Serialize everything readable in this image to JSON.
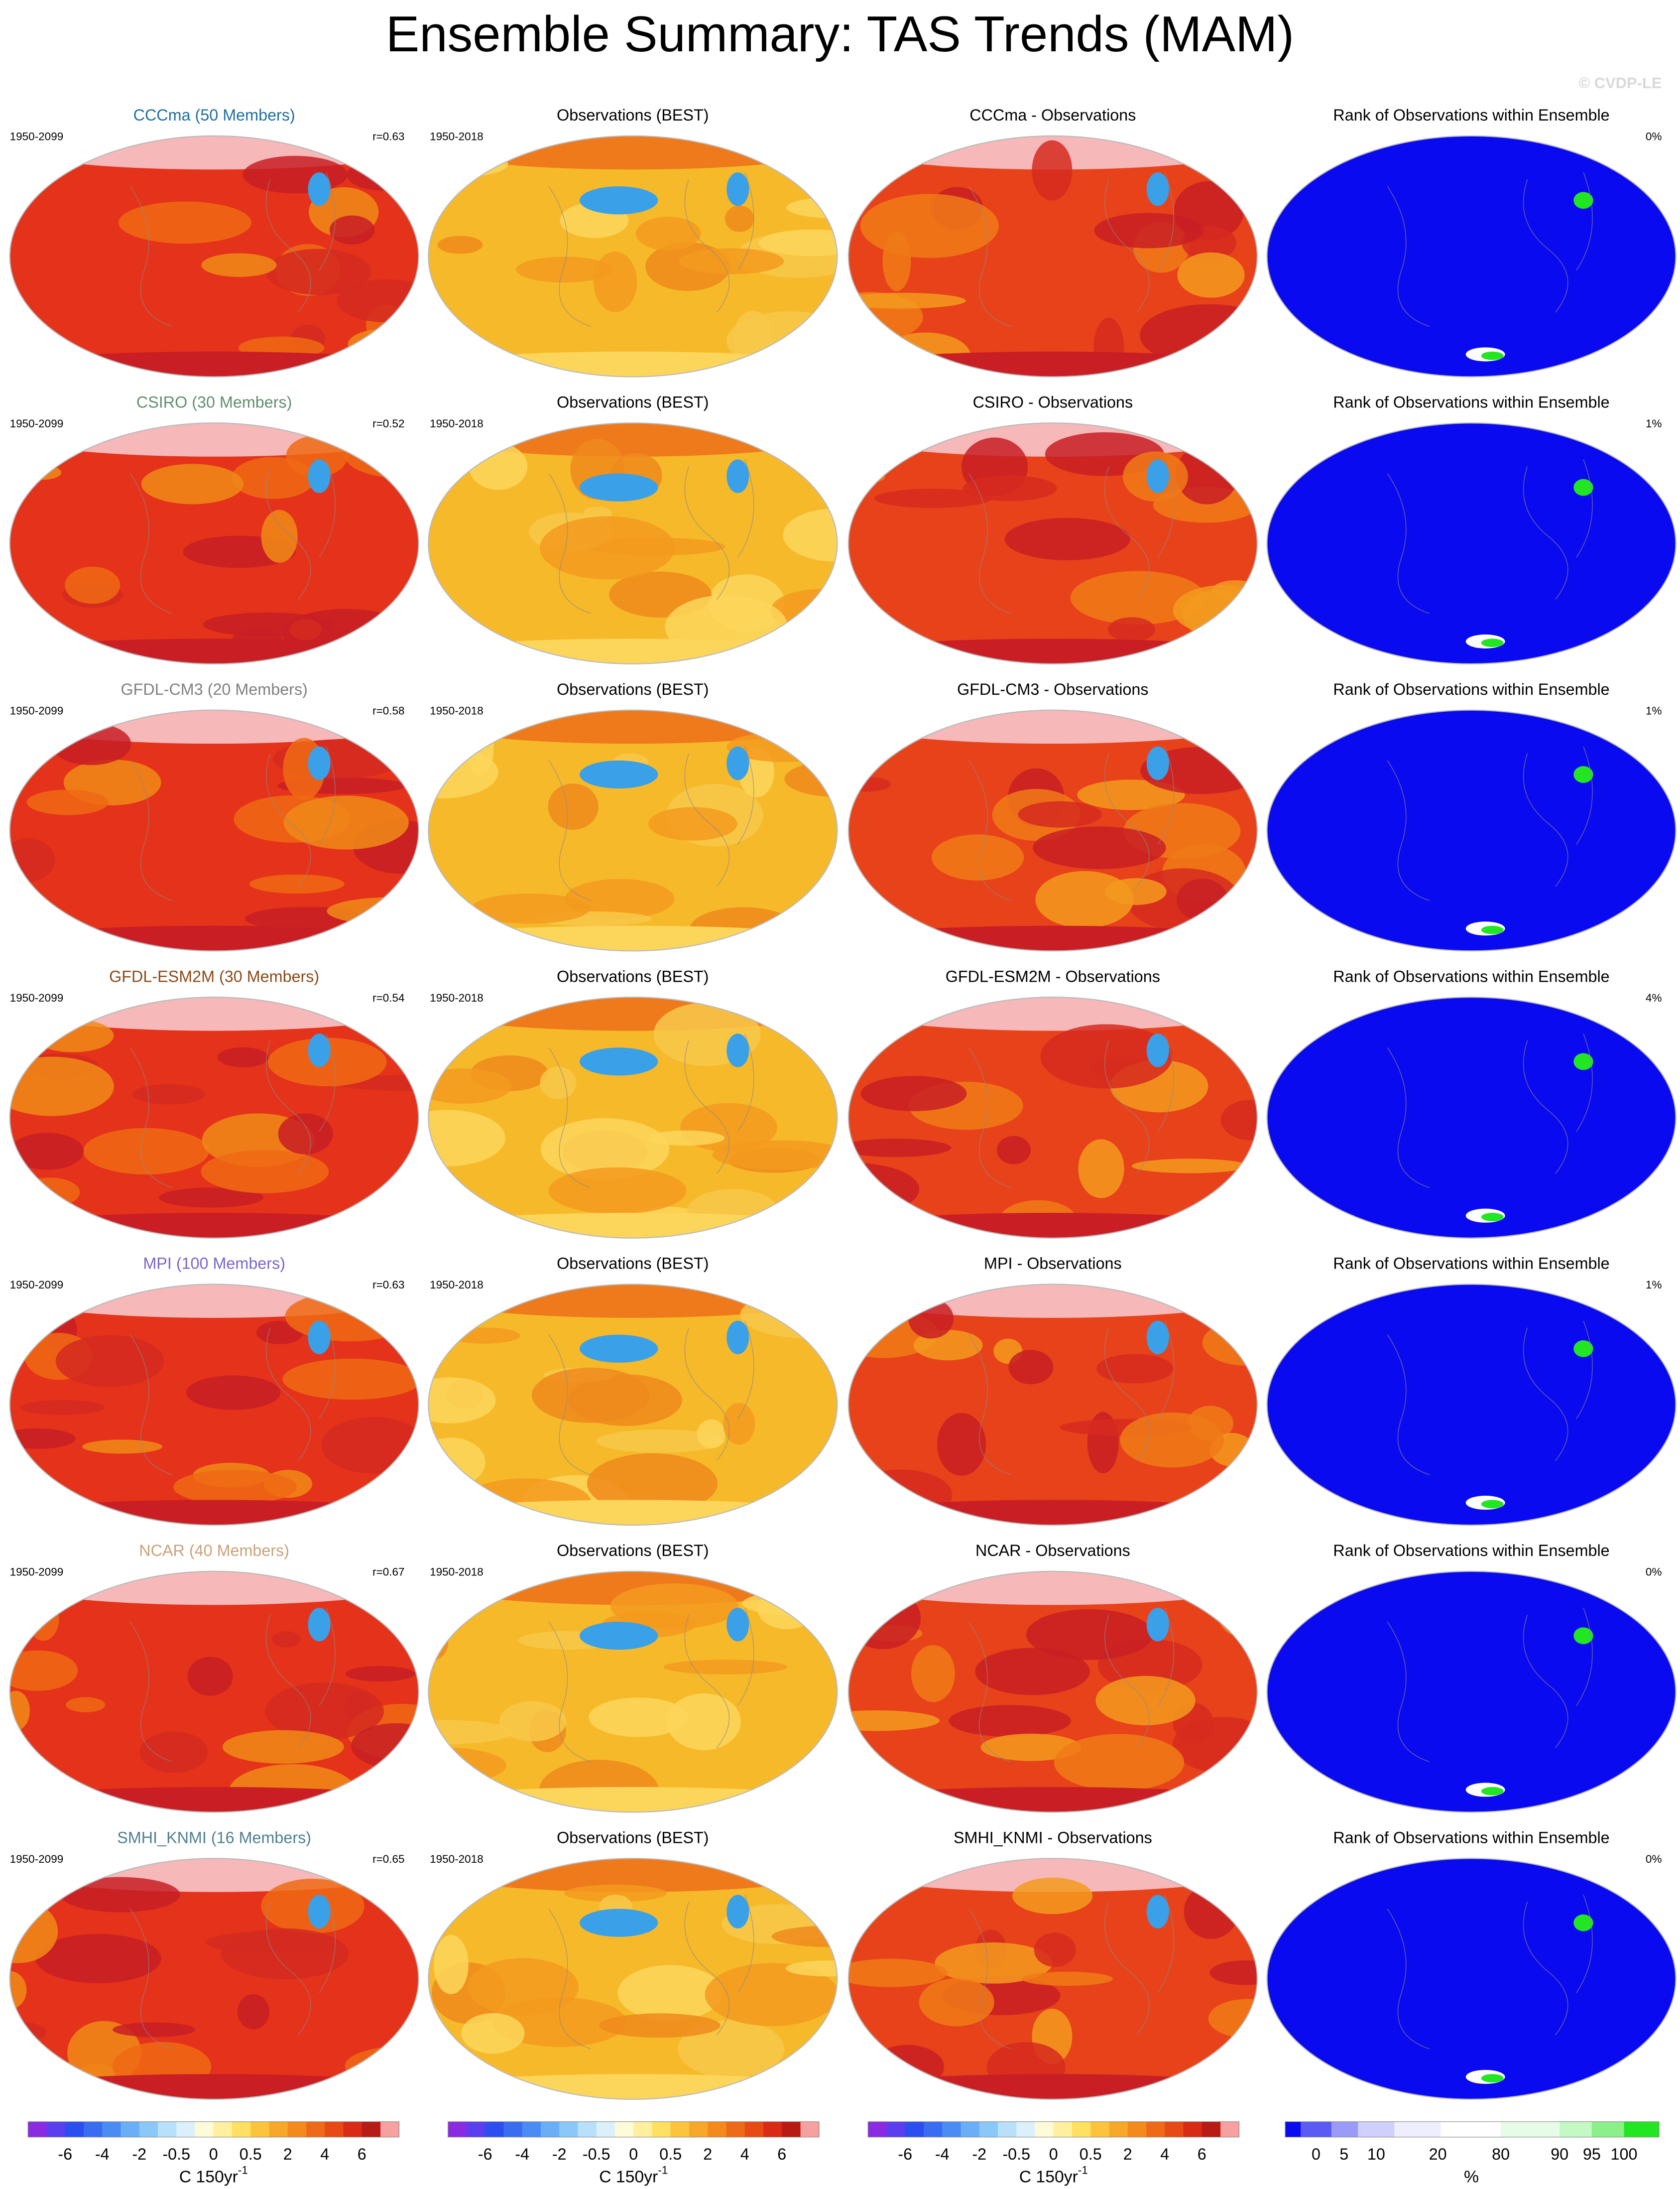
{
  "title": "Ensemble Summary: TAS Trends (MAM)",
  "credit": "© CVDP-LE",
  "rows": [
    {
      "model": "CCCma (50 Members)",
      "model_color": "#1f6f9f",
      "model_period": "1950-2099",
      "r": "r=0.63",
      "obs_title": "Observations (BEST)",
      "obs_period": "1950-2018",
      "diff_title": "CCCma - Observations",
      "rank_title": "Rank of Observations within Ensemble",
      "rank_pct": "0%"
    },
    {
      "model": "CSIRO (30 Members)",
      "model_color": "#5f8f6f",
      "model_period": "1950-2099",
      "r": "r=0.52",
      "obs_title": "Observations (BEST)",
      "obs_period": "1950-2018",
      "diff_title": "CSIRO - Observations",
      "rank_title": "Rank of Observations within Ensemble",
      "rank_pct": "1%"
    },
    {
      "model": "GFDL-CM3 (20 Members)",
      "model_color": "#808080",
      "model_period": "1950-2099",
      "r": "r=0.58",
      "obs_title": "Observations (BEST)",
      "obs_period": "1950-2018",
      "diff_title": "GFDL-CM3 - Observations",
      "rank_title": "Rank of Observations within Ensemble",
      "rank_pct": "1%"
    },
    {
      "model": "GFDL-ESM2M (30 Members)",
      "model_color": "#8b4a1a",
      "model_period": "1950-2099",
      "r": "r=0.54",
      "obs_title": "Observations (BEST)",
      "obs_period": "1950-2018",
      "diff_title": "GFDL-ESM2M - Observations",
      "rank_title": "Rank of Observations within Ensemble",
      "rank_pct": "4%"
    },
    {
      "model": "MPI (100 Members)",
      "model_color": "#7a66cc",
      "model_period": "1950-2099",
      "r": "r=0.63",
      "obs_title": "Observations (BEST)",
      "obs_period": "1950-2018",
      "diff_title": "MPI - Observations",
      "rank_title": "Rank of Observations within Ensemble",
      "rank_pct": "1%"
    },
    {
      "model": "NCAR (40 Members)",
      "model_color": "#c9a27a",
      "model_period": "1950-2099",
      "r": "r=0.67",
      "obs_title": "Observations (BEST)",
      "obs_period": "1950-2018",
      "diff_title": "NCAR - Observations",
      "rank_title": "Rank of Observations within Ensemble",
      "rank_pct": "0%"
    },
    {
      "model": "SMHI_KNMI (16 Members)",
      "model_color": "#4f7f8f",
      "model_period": "1950-2099",
      "r": "r=0.65",
      "obs_title": "Observations (BEST)",
      "obs_period": "1950-2018",
      "diff_title": "SMHI_KNMI - Observations",
      "rank_title": "Rank of Observations within Ensemble",
      "rank_pct": "0%"
    }
  ],
  "colorbars": [
    {
      "ticks": [
        "-6",
        "-4",
        "-2",
        "-0.5",
        "0",
        "0.5",
        "2",
        "4",
        "6"
      ],
      "unit": "C 150yr",
      "unit_sup": "-1"
    },
    {
      "ticks": [
        "-6",
        "-4",
        "-2",
        "-0.5",
        "0",
        "0.5",
        "2",
        "4",
        "6"
      ],
      "unit": "C 150yr",
      "unit_sup": "-1"
    },
    {
      "ticks": [
        "-6",
        "-4",
        "-2",
        "-0.5",
        "0",
        "0.5",
        "2",
        "4",
        "6"
      ],
      "unit": "C 150yr",
      "unit_sup": "-1"
    },
    {
      "ticks": [
        "0",
        "5",
        "10",
        "20",
        "80",
        "90",
        "95",
        "100"
      ],
      "unit": "%"
    }
  ]
}
